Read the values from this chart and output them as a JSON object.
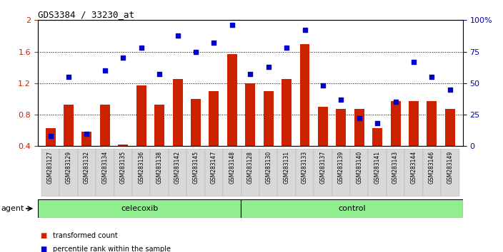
{
  "title": "GDS3384 / 33230_at",
  "categories": [
    "GSM283127",
    "GSM283129",
    "GSM283132",
    "GSM283134",
    "GSM283135",
    "GSM283136",
    "GSM283138",
    "GSM283142",
    "GSM283145",
    "GSM283147",
    "GSM283148",
    "GSM283128",
    "GSM283130",
    "GSM283131",
    "GSM283133",
    "GSM283137",
    "GSM283139",
    "GSM283140",
    "GSM283141",
    "GSM283143",
    "GSM283144",
    "GSM283146",
    "GSM283149"
  ],
  "bar_values": [
    0.63,
    0.93,
    0.58,
    0.93,
    0.42,
    1.17,
    0.93,
    1.25,
    1.0,
    1.1,
    1.57,
    1.2,
    1.1,
    1.25,
    1.7,
    0.9,
    0.87,
    0.87,
    0.63,
    0.97,
    0.97,
    0.97,
    0.87
  ],
  "scatter_values": [
    8,
    55,
    10,
    60,
    70,
    78,
    57,
    88,
    75,
    82,
    96,
    57,
    63,
    78,
    92,
    48,
    37,
    22,
    18,
    35,
    67,
    55,
    45
  ],
  "celecoxib_count": 11,
  "control_count": 12,
  "bar_color": "#CC2200",
  "scatter_color": "#0000CC",
  "ylim_left": [
    0.4,
    2.0
  ],
  "ylim_right": [
    0,
    100
  ],
  "yticks_left": [
    0.4,
    0.8,
    1.2,
    1.6,
    2.0
  ],
  "ytick_labels_left": [
    "0.4",
    "0.8",
    "1.2",
    "1.6",
    "2"
  ],
  "yticks_right": [
    0,
    25,
    50,
    75,
    100
  ],
  "ytick_labels_right": [
    "0",
    "25",
    "50",
    "75",
    "100%"
  ],
  "group_color_light": "#90EE90",
  "group_color_dark": "#4CAF50",
  "agent_label": "agent",
  "celecoxib_label": "celecoxib",
  "control_label": "control",
  "legend_items": [
    {
      "label": "transformed count",
      "color": "#CC2200"
    },
    {
      "label": "percentile rank within the sample",
      "color": "#0000CC"
    }
  ]
}
